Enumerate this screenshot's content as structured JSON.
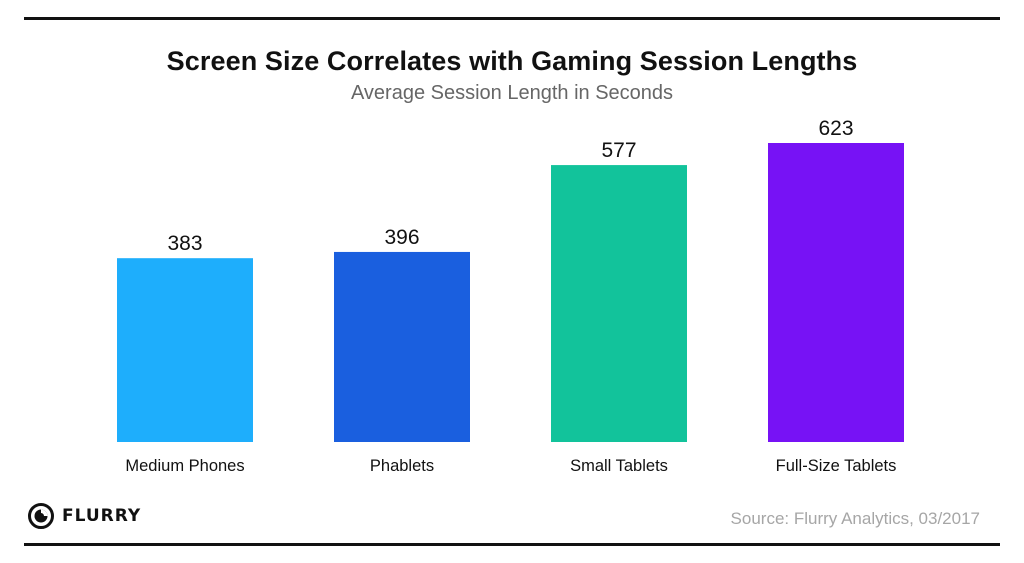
{
  "chart_data": {
    "type": "bar",
    "title": "Screen Size Correlates with Gaming Session Lengths",
    "subtitle": "Average Session Length in Seconds",
    "categories": [
      "Medium Phones",
      "Phablets",
      "Small Tablets",
      "Full-Size Tablets"
    ],
    "values": [
      383,
      396,
      577,
      623
    ],
    "value_labels": [
      "383",
      "396",
      "577",
      "623"
    ],
    "colors": [
      "#1eaefc",
      "#1a5fdf",
      "#12c39b",
      "#7712f5"
    ],
    "xlabel": "",
    "ylabel": "",
    "ylim": [
      0,
      623
    ],
    "grid": false,
    "legend": "none"
  },
  "branding": {
    "logo_text": "FLURRY",
    "logo_icon": "flurry-logo-icon"
  },
  "footer": {
    "source": "Source: Flurry Analytics, 03/2017"
  }
}
